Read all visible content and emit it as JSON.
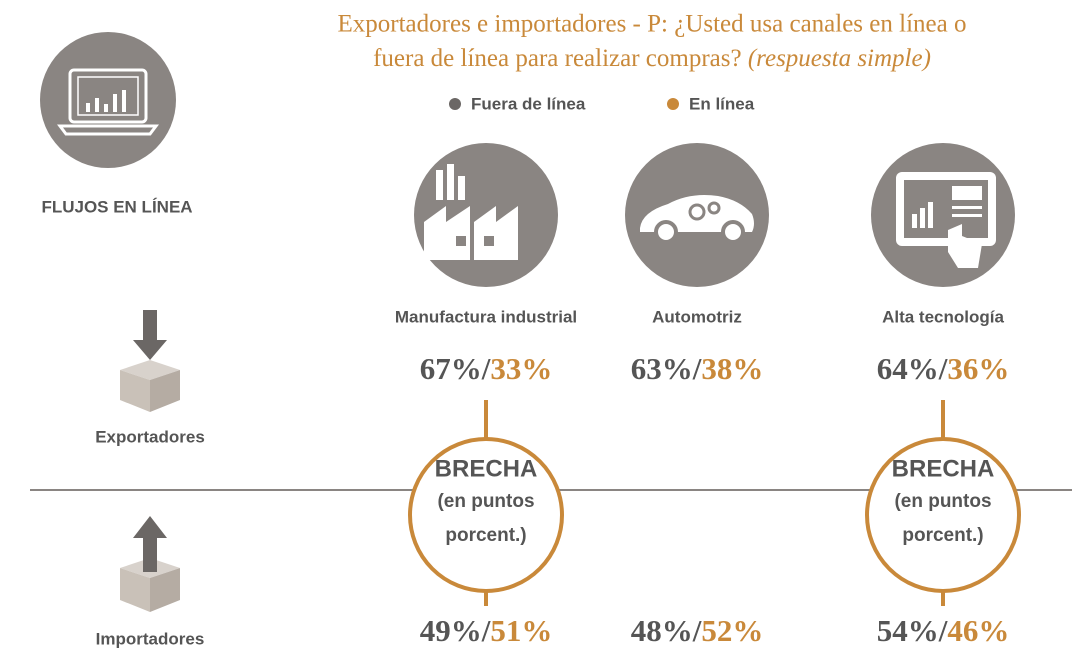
{
  "header": {
    "title_line1": "Exportadores e importadores - P: ¿Usted usa canales en línea o",
    "title_line2": "fuera de línea para realizar compras?",
    "title_note": "(respuesta simple)"
  },
  "legend": {
    "offline": "Fuera de línea",
    "online": "En línea"
  },
  "section_label": "FLUJOS EN LÍNEA",
  "groups": [
    "Exportadores",
    "Importadores"
  ],
  "sectors": [
    "Manufactura industrial",
    "Automotriz",
    "Alta tecnología"
  ],
  "separator": "/",
  "rows": [
    [
      {
        "offline": "67%",
        "online": "33%"
      },
      {
        "offline": "63%",
        "online": "38%"
      },
      {
        "offline": "64%",
        "online": "36%"
      }
    ],
    [
      {
        "offline": "49%",
        "online": "51%"
      },
      {
        "offline": "48%",
        "online": "52%"
      },
      {
        "offline": "54%",
        "online": "46%"
      }
    ]
  ],
  "gap_badge": [
    "BRECHA",
    "(en puntos",
    "porcent.)"
  ]
}
